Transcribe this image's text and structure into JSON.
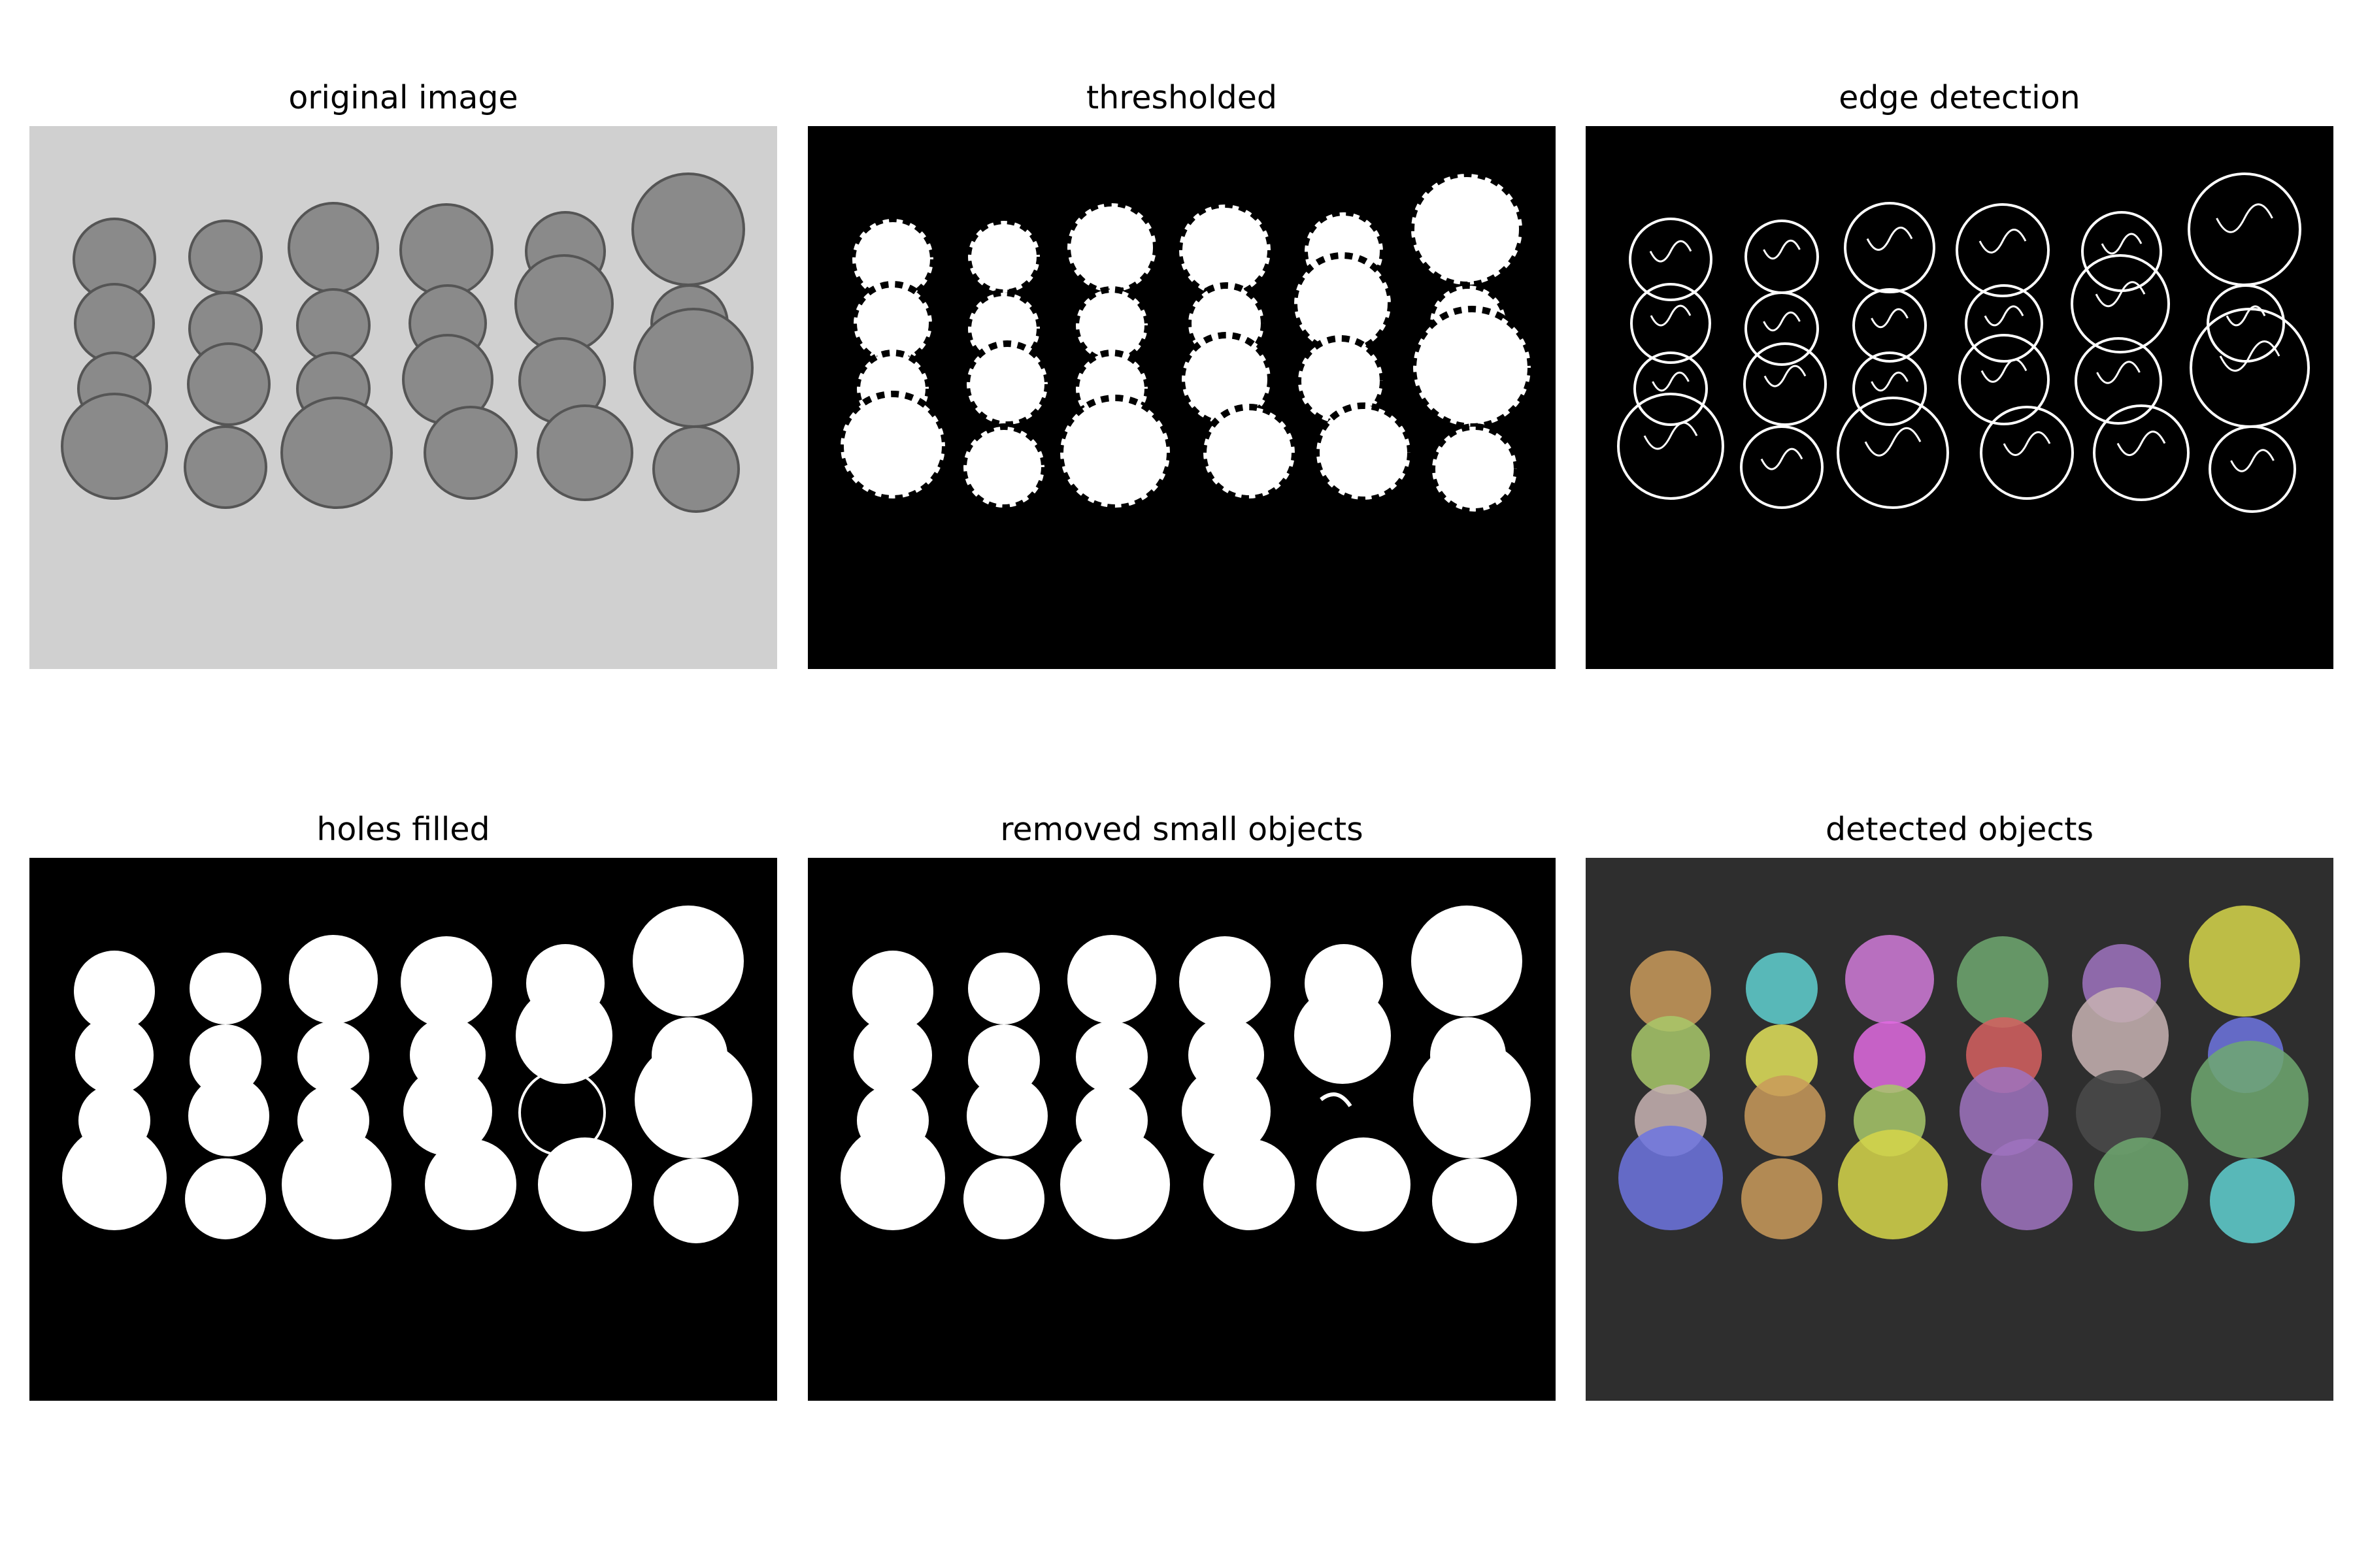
{
  "figure": {
    "panels": [
      {
        "title": "original image"
      },
      {
        "title": "thresholded"
      },
      {
        "title": "edge detection"
      },
      {
        "title": "holes filled"
      },
      {
        "title": "removed small objects"
      },
      {
        "title": "detected objects"
      }
    ]
  },
  "coin_colors": [
    "#c99a5a",
    "#5fd0d0",
    "#d07ad8",
    "#6fa870",
    "#9f73c0",
    "#d6d64a",
    "#a8c86a",
    "#e2e25a",
    "#e06ae0",
    "#d66060",
    "#c8b3b3",
    "#6d74e0",
    "#c8b3b3",
    "#c99a5a",
    "#a8c86a",
    "#9f73c0",
    "#4a4a4a",
    "#6fa870",
    "#6d74e0",
    "#c99a5a",
    "#d6d64a",
    "#9f73c0",
    "#6fa870",
    "#5fd0d0"
  ],
  "colors": {
    "background_original": "#d0d0d0",
    "coin_original": "#8a8a8a",
    "mask_background": "#000000",
    "mask_foreground": "#ffffff",
    "detected_background": "#2e2e2e"
  }
}
